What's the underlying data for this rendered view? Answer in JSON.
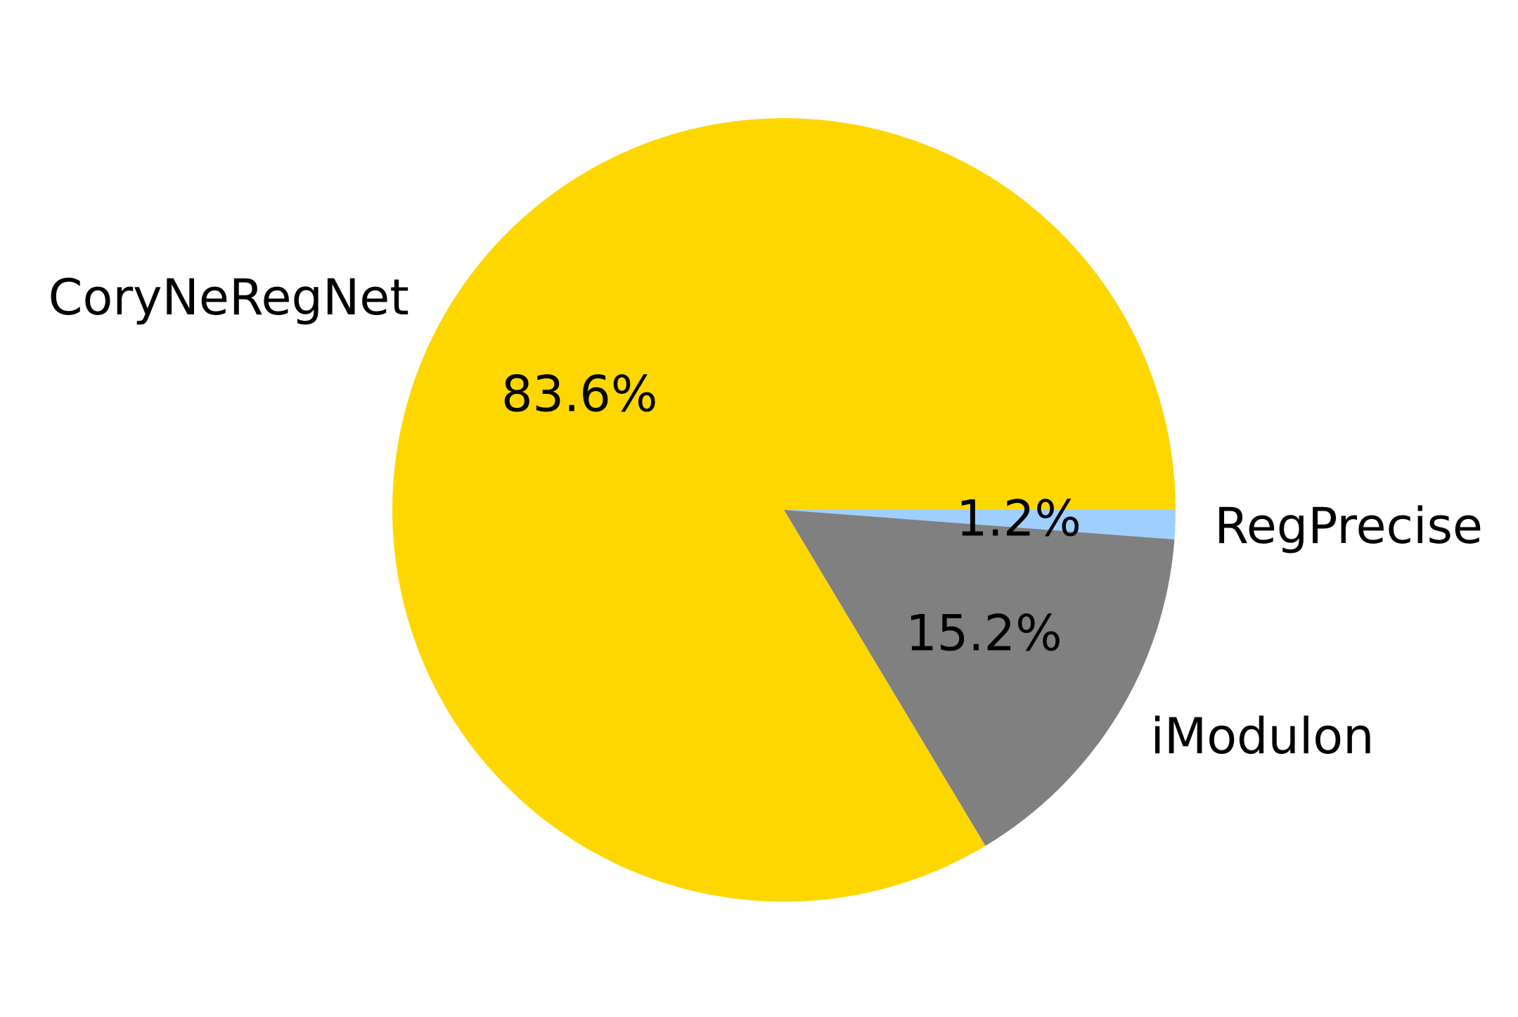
{
  "chart_data": {
    "type": "pie",
    "start_angle_deg": 0,
    "direction": "clockwise",
    "slices": [
      {
        "label": "RegPrecise",
        "value": 1.2,
        "pct_label": "1.2%",
        "color": "#9ecfff"
      },
      {
        "label": "iModulon",
        "value": 15.2,
        "pct_label": "15.2%",
        "color": "#808080"
      },
      {
        "label": "CoryNeRegNet",
        "value": 83.6,
        "pct_label": "83.6%",
        "color": "#fed700"
      }
    ]
  }
}
